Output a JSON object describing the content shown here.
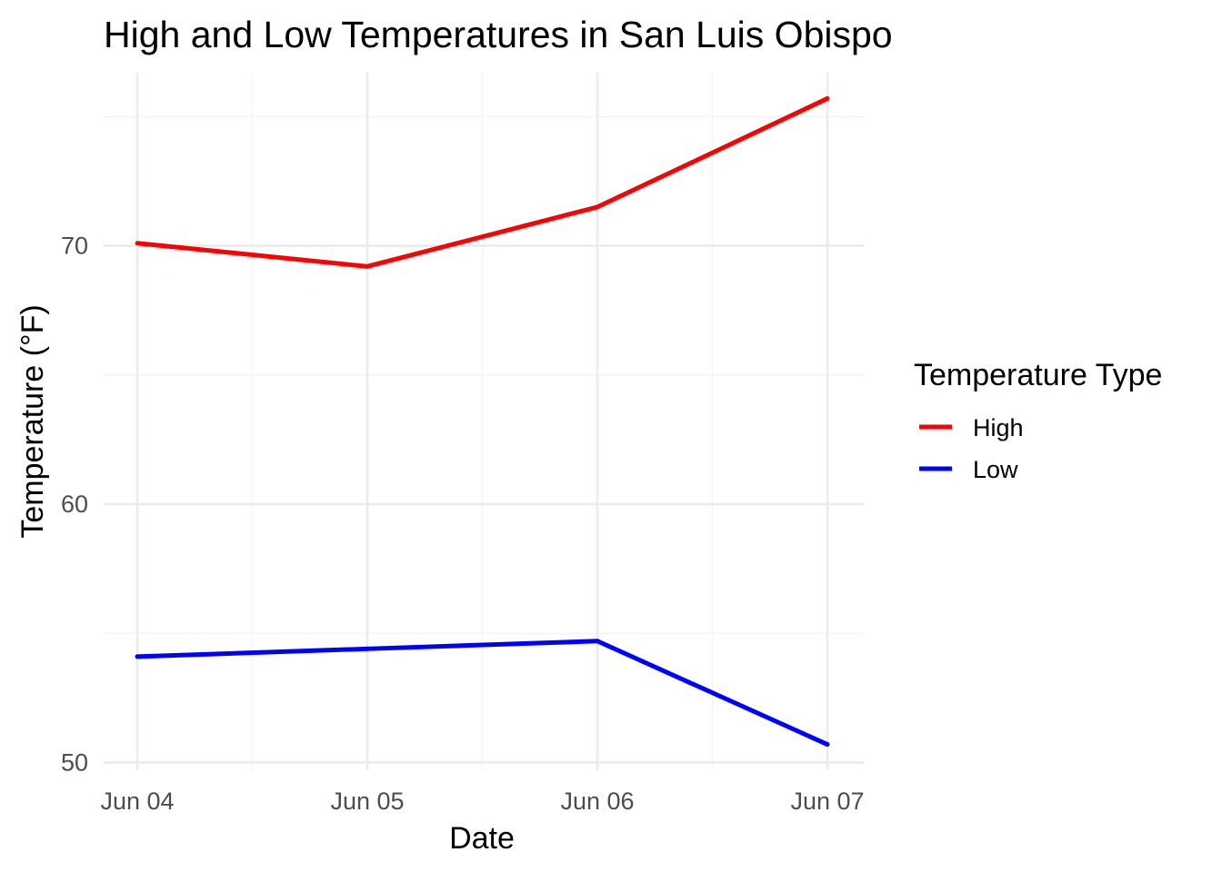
{
  "chart_data": {
    "type": "line",
    "title": "High and Low Temperatures in San Luis Obispo",
    "xlabel": "Date",
    "ylabel": "Temperature (°F)",
    "x": [
      "Jun 04",
      "Jun 05",
      "Jun 06",
      "Jun 07"
    ],
    "series": [
      {
        "name": "High",
        "color": "#ff0000",
        "values": [
          70.1,
          69.2,
          71.5,
          75.7
        ]
      },
      {
        "name": "Low",
        "color": "#0000ff",
        "values": [
          54.1,
          54.4,
          54.7,
          50.7
        ]
      }
    ],
    "ylim": [
      49.7,
      76.7
    ],
    "yticks": [
      50,
      60,
      70
    ],
    "grid": true,
    "legend": {
      "title": "Temperature Type",
      "placement": "right"
    }
  }
}
